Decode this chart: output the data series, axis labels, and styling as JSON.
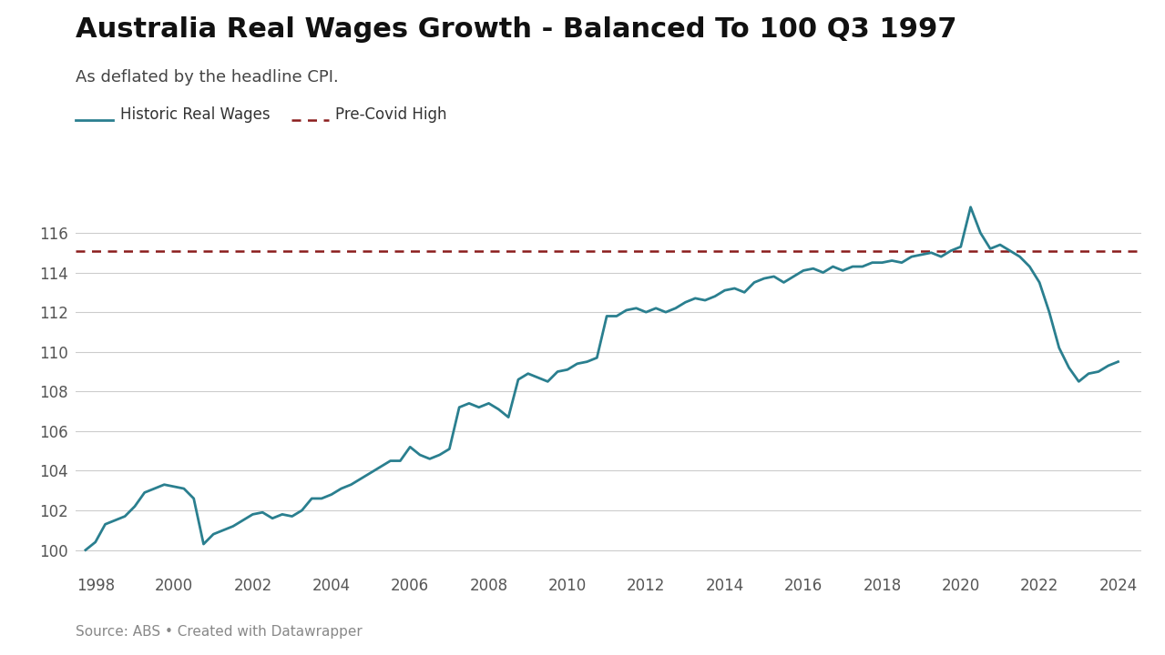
{
  "title": "Australia Real Wages Growth - Balanced To 100 Q3 1997",
  "subtitle": "As deflated by the headline CPI.",
  "source": "Source: ABS • Created with Datawrapper",
  "legend_line1": "Historic Real Wages",
  "legend_line2": "Pre-Covid High",
  "line_color": "#2a7f8f",
  "dashed_color": "#8b1c1c",
  "pre_covid_high": 115.1,
  "background_color": "#ffffff",
  "title_fontsize": 22,
  "subtitle_fontsize": 13,
  "legend_fontsize": 12,
  "tick_fontsize": 12,
  "source_fontsize": 11,
  "ylim": [
    99.0,
    118.0
  ],
  "yticks": [
    100,
    102,
    104,
    106,
    108,
    110,
    112,
    114,
    116
  ],
  "xticks": [
    1998,
    2000,
    2002,
    2004,
    2006,
    2008,
    2010,
    2012,
    2014,
    2016,
    2018,
    2020,
    2022,
    2024
  ],
  "wages_data": [
    [
      1997.75,
      100.0
    ],
    [
      1998.0,
      100.4
    ],
    [
      1998.25,
      101.3
    ],
    [
      1998.5,
      101.5
    ],
    [
      1998.75,
      101.7
    ],
    [
      1999.0,
      102.2
    ],
    [
      1999.25,
      102.9
    ],
    [
      1999.5,
      103.1
    ],
    [
      1999.75,
      103.3
    ],
    [
      2000.0,
      103.2
    ],
    [
      2000.25,
      103.1
    ],
    [
      2000.5,
      102.6
    ],
    [
      2000.75,
      100.3
    ],
    [
      2001.0,
      100.8
    ],
    [
      2001.25,
      101.0
    ],
    [
      2001.5,
      101.2
    ],
    [
      2001.75,
      101.5
    ],
    [
      2002.0,
      101.8
    ],
    [
      2002.25,
      101.9
    ],
    [
      2002.5,
      101.6
    ],
    [
      2002.75,
      101.8
    ],
    [
      2003.0,
      101.7
    ],
    [
      2003.25,
      102.0
    ],
    [
      2003.5,
      102.6
    ],
    [
      2003.75,
      102.6
    ],
    [
      2004.0,
      102.8
    ],
    [
      2004.25,
      103.1
    ],
    [
      2004.5,
      103.3
    ],
    [
      2004.75,
      103.6
    ],
    [
      2005.0,
      103.9
    ],
    [
      2005.25,
      104.2
    ],
    [
      2005.5,
      104.5
    ],
    [
      2005.75,
      104.5
    ],
    [
      2006.0,
      105.2
    ],
    [
      2006.25,
      104.8
    ],
    [
      2006.5,
      104.6
    ],
    [
      2006.75,
      104.8
    ],
    [
      2007.0,
      105.1
    ],
    [
      2007.25,
      107.2
    ],
    [
      2007.5,
      107.4
    ],
    [
      2007.75,
      107.2
    ],
    [
      2008.0,
      107.4
    ],
    [
      2008.25,
      107.1
    ],
    [
      2008.5,
      106.7
    ],
    [
      2008.75,
      108.6
    ],
    [
      2009.0,
      108.9
    ],
    [
      2009.25,
      108.7
    ],
    [
      2009.5,
      108.5
    ],
    [
      2009.75,
      109.0
    ],
    [
      2010.0,
      109.1
    ],
    [
      2010.25,
      109.4
    ],
    [
      2010.5,
      109.5
    ],
    [
      2010.75,
      109.7
    ],
    [
      2011.0,
      111.8
    ],
    [
      2011.25,
      111.8
    ],
    [
      2011.5,
      112.1
    ],
    [
      2011.75,
      112.2
    ],
    [
      2012.0,
      112.0
    ],
    [
      2012.25,
      112.2
    ],
    [
      2012.5,
      112.0
    ],
    [
      2012.75,
      112.2
    ],
    [
      2013.0,
      112.5
    ],
    [
      2013.25,
      112.7
    ],
    [
      2013.5,
      112.6
    ],
    [
      2013.75,
      112.8
    ],
    [
      2014.0,
      113.1
    ],
    [
      2014.25,
      113.2
    ],
    [
      2014.5,
      113.0
    ],
    [
      2014.75,
      113.5
    ],
    [
      2015.0,
      113.7
    ],
    [
      2015.25,
      113.8
    ],
    [
      2015.5,
      113.5
    ],
    [
      2015.75,
      113.8
    ],
    [
      2016.0,
      114.1
    ],
    [
      2016.25,
      114.2
    ],
    [
      2016.5,
      114.0
    ],
    [
      2016.75,
      114.3
    ],
    [
      2017.0,
      114.1
    ],
    [
      2017.25,
      114.3
    ],
    [
      2017.5,
      114.3
    ],
    [
      2017.75,
      114.5
    ],
    [
      2018.0,
      114.5
    ],
    [
      2018.25,
      114.6
    ],
    [
      2018.5,
      114.5
    ],
    [
      2018.75,
      114.8
    ],
    [
      2019.0,
      114.9
    ],
    [
      2019.25,
      115.0
    ],
    [
      2019.5,
      114.8
    ],
    [
      2019.75,
      115.1
    ],
    [
      2020.0,
      115.3
    ],
    [
      2020.25,
      117.3
    ],
    [
      2020.5,
      116.0
    ],
    [
      2020.75,
      115.2
    ],
    [
      2021.0,
      115.4
    ],
    [
      2021.25,
      115.1
    ],
    [
      2021.5,
      114.8
    ],
    [
      2021.75,
      114.3
    ],
    [
      2022.0,
      113.5
    ],
    [
      2022.25,
      112.0
    ],
    [
      2022.5,
      110.2
    ],
    [
      2022.75,
      109.2
    ],
    [
      2023.0,
      108.5
    ],
    [
      2023.25,
      108.9
    ],
    [
      2023.5,
      109.0
    ],
    [
      2023.75,
      109.3
    ],
    [
      2024.0,
      109.5
    ]
  ]
}
